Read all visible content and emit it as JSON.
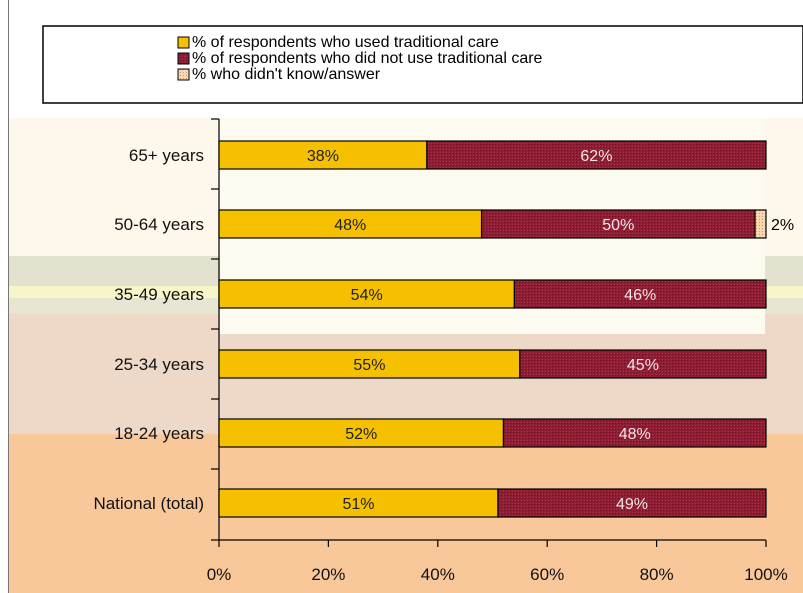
{
  "chart_data": {
    "type": "bar",
    "orientation": "horizontal",
    "stacked": true,
    "categories": [
      "65+ years",
      "50-64 years",
      "35-49 years",
      "25-34 years",
      "18-24 years",
      "National (total)"
    ],
    "series": [
      {
        "name": "% of respondents who used traditional care",
        "values": [
          38,
          48,
          54,
          55,
          52,
          51
        ],
        "color": "#f5c000"
      },
      {
        "name": "% of respondents who did not use traditional care",
        "values": [
          62,
          50,
          46,
          45,
          48,
          49
        ],
        "color": "#8b1a2e"
      },
      {
        "name": "% who didn't know/answer",
        "values": [
          0,
          2,
          0,
          0,
          0,
          0
        ],
        "color": "#f3cfa0"
      }
    ],
    "value_labels": [
      [
        "38%",
        "62%",
        ""
      ],
      [
        "48%",
        "50%",
        "2%"
      ],
      [
        "54%",
        "46%",
        ""
      ],
      [
        "55%",
        "45%",
        ""
      ],
      [
        "52%",
        "48%",
        ""
      ],
      [
        "51%",
        "49%",
        ""
      ]
    ],
    "x_ticks": [
      "0%",
      "20%",
      "40%",
      "60%",
      "80%",
      "100%"
    ],
    "xlim": [
      0,
      100
    ],
    "legend_position": "top",
    "grid": false
  }
}
